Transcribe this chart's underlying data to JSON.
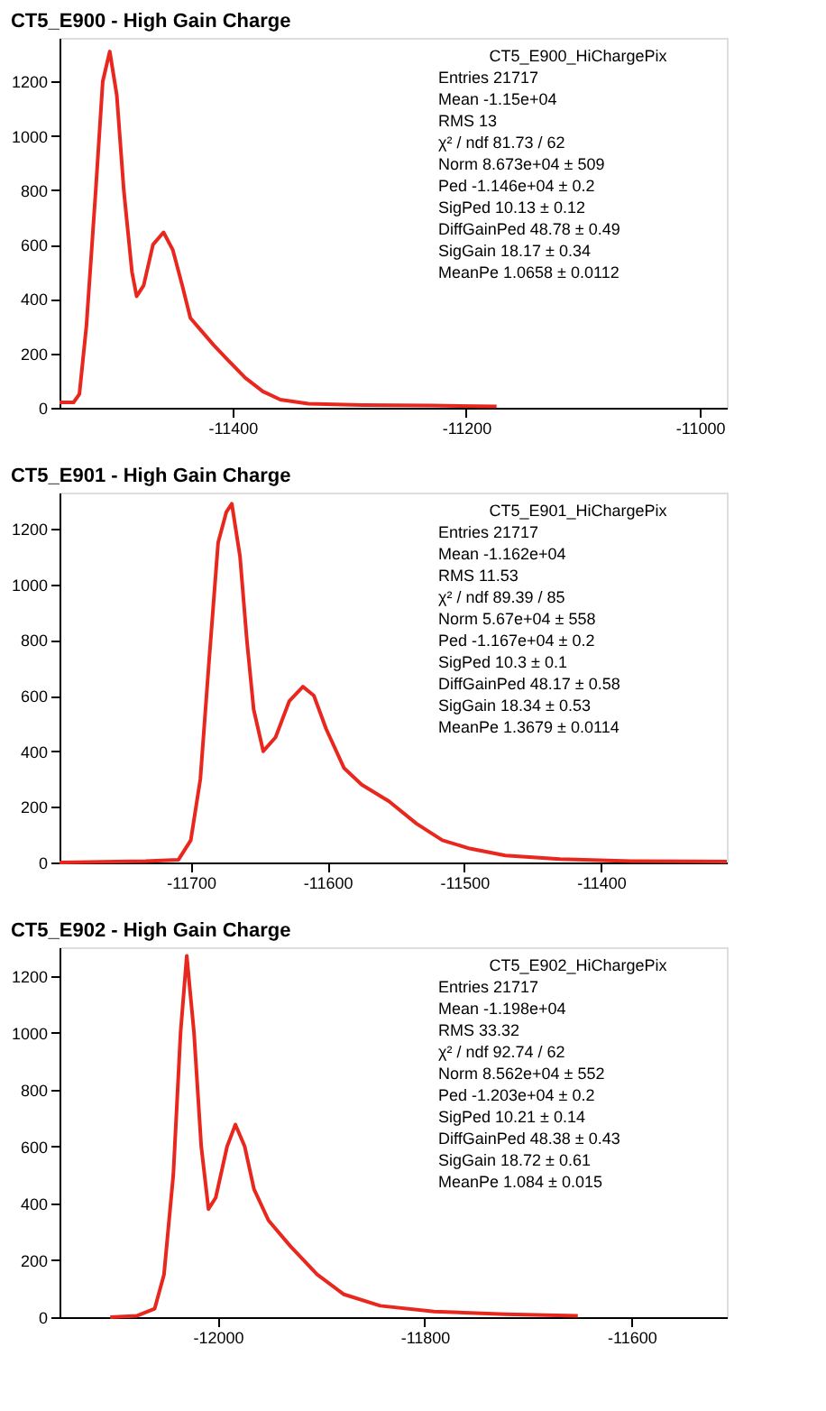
{
  "chart_data": [
    {
      "type": "line",
      "title": "CT5_E900 - High Gain Charge",
      "xlim": [
        -11548,
        -10977
      ],
      "xticks": [
        -11400,
        -11200,
        -11000
      ],
      "ylim": [
        0,
        1360
      ],
      "yticks": [
        0,
        200,
        400,
        600,
        800,
        1000,
        1200
      ],
      "grid": false,
      "marker": "none",
      "annotations": [
        "CT5_E900_HiChargePix",
        "Entries 21717",
        "Mean -1.15e+04",
        "RMS 13",
        "χ² / ndf 81.73 / 62",
        "Norm 8.673e+04 ± 509",
        "Ped -1.146e+04 ± 0.2",
        "SigPed 10.13 ± 0.12",
        "DiffGainPed 48.78 ± 0.49",
        "SigGain 18.17 ± 0.34",
        "MeanPe 1.0658 ± 0.0112"
      ],
      "series": [
        {
          "color": "#e8281e",
          "x": [
            -11548,
            -11536,
            -11531,
            -11525,
            -11517,
            -11511,
            -11505,
            -11499,
            -11493,
            -11486,
            -11482,
            -11476,
            -11468,
            -11459,
            -11451,
            -11443,
            -11436,
            -11428,
            -11416,
            -11405,
            -11389,
            -11374,
            -11359,
            -11335,
            -11289,
            -11228,
            -11174
          ],
          "values": [
            20,
            20,
            50,
            300,
            800,
            1200,
            1310,
            1150,
            800,
            500,
            410,
            450,
            600,
            645,
            580,
            450,
            330,
            290,
            230,
            180,
            110,
            60,
            30,
            15,
            10,
            8,
            5
          ]
        }
      ]
    },
    {
      "type": "line",
      "title": "CT5_E901 - High Gain Charge",
      "xlim": [
        -11796,
        -11308
      ],
      "xticks": [
        -11700,
        -11600,
        -11500,
        -11400
      ],
      "ylim": [
        0,
        1330
      ],
      "yticks": [
        0,
        200,
        400,
        600,
        800,
        1000,
        1200
      ],
      "grid": false,
      "marker": "none",
      "annotations": [
        "CT5_E901_HiChargePix",
        "Entries 21717",
        "Mean -1.162e+04",
        "RMS 11.53",
        "χ² / ndf 89.39 / 85",
        "Norm 5.67e+04 ± 558",
        "Ped -1.167e+04 ± 0.2",
        "SigPed 10.3 ± 0.1",
        "DiffGainPed 48.17 ± 0.58",
        "SigGain 18.34 ± 0.53",
        "MeanPe 1.3679 ± 0.0114"
      ],
      "series": [
        {
          "color": "#e8281e",
          "x": [
            -11796,
            -11733,
            -11709,
            -11700,
            -11693,
            -11687,
            -11680,
            -11674,
            -11670,
            -11664,
            -11659,
            -11654,
            -11647,
            -11638,
            -11628,
            -11618,
            -11610,
            -11601,
            -11588,
            -11575,
            -11555,
            -11535,
            -11516,
            -11496,
            -11470,
            -11430,
            -11378,
            -11308
          ],
          "values": [
            0,
            5,
            10,
            80,
            300,
            700,
            1150,
            1260,
            1290,
            1100,
            800,
            550,
            400,
            450,
            580,
            632,
            600,
            480,
            340,
            280,
            220,
            140,
            80,
            50,
            25,
            12,
            5,
            3
          ]
        }
      ]
    },
    {
      "type": "line",
      "title": "CT5_E902 - High Gain Charge",
      "xlim": [
        -12153,
        -11508
      ],
      "xticks": [
        -12000,
        -11800,
        -11600
      ],
      "ylim": [
        0,
        1300
      ],
      "yticks": [
        0,
        200,
        400,
        600,
        800,
        1000,
        1200
      ],
      "grid": false,
      "marker": "none",
      "annotations": [
        "CT5_E902_HiChargePix",
        "Entries 21717",
        "Mean -1.198e+04",
        "RMS 33.32",
        "χ² / ndf 92.74 / 62",
        "Norm 8.562e+04 ± 552",
        "Ped -1.203e+04 ± 0.2",
        "SigPed 10.21 ± 0.14",
        "DiffGainPed 48.38 ± 0.43",
        "SigGain 18.72 ± 0.61",
        "MeanPe 1.084 ± 0.015"
      ],
      "series": [
        {
          "color": "#e8281e",
          "x": [
            -12104,
            -12078,
            -12061,
            -12052,
            -12043,
            -12036,
            -12030,
            -12023,
            -12016,
            -12009,
            -12002,
            -11991,
            -11983,
            -11974,
            -11965,
            -11951,
            -11930,
            -11904,
            -11878,
            -11843,
            -11791,
            -11722,
            -11652
          ],
          "values": [
            0,
            5,
            30,
            150,
            500,
            1000,
            1270,
            1000,
            600,
            380,
            420,
            600,
            677,
            600,
            450,
            340,
            250,
            150,
            80,
            40,
            20,
            10,
            5
          ]
        }
      ]
    }
  ]
}
